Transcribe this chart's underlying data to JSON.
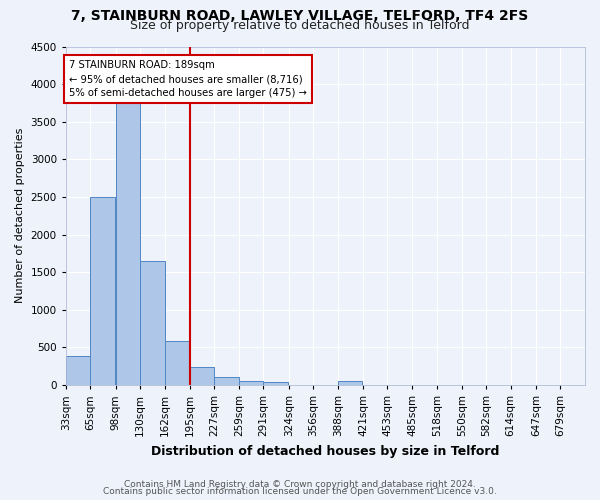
{
  "title": "7, STAINBURN ROAD, LAWLEY VILLAGE, TELFORD, TF4 2FS",
  "subtitle": "Size of property relative to detached houses in Telford",
  "xlabel": "Distribution of detached houses by size in Telford",
  "ylabel": "Number of detached properties",
  "footnote1": "Contains HM Land Registry data © Crown copyright and database right 2024.",
  "footnote2": "Contains public sector information licensed under the Open Government Licence v3.0.",
  "bar_labels": [
    "33sqm",
    "65sqm",
    "98sqm",
    "130sqm",
    "162sqm",
    "195sqm",
    "227sqm",
    "259sqm",
    "291sqm",
    "324sqm",
    "356sqm",
    "388sqm",
    "421sqm",
    "453sqm",
    "485sqm",
    "518sqm",
    "550sqm",
    "582sqm",
    "614sqm",
    "647sqm",
    "679sqm"
  ],
  "bar_values": [
    380,
    2500,
    3750,
    1650,
    590,
    240,
    105,
    60,
    40,
    0,
    0,
    55,
    0,
    0,
    0,
    0,
    0,
    0,
    0,
    0,
    0
  ],
  "bar_color": "#aec6e8",
  "bar_edge_color": "#4f86c4",
  "property_label": "7 STAINBURN ROAD: 189sqm",
  "annotation_line1": "← 95% of detached houses are smaller (8,716)",
  "annotation_line2": "5% of semi-detached houses are larger (475) →",
  "vline_color": "#cc0000",
  "annotation_box_color": "#ffffff",
  "annotation_box_edge": "#cc0000",
  "ylim": [
    0,
    4500
  ],
  "background_color": "#eef2fb",
  "grid_color": "#ffffff",
  "title_fontsize": 10,
  "subtitle_fontsize": 9,
  "xlabel_fontsize": 9,
  "ylabel_fontsize": 8,
  "tick_fontsize": 7.5,
  "footnote_fontsize": 6.5,
  "bin_width": 32
}
